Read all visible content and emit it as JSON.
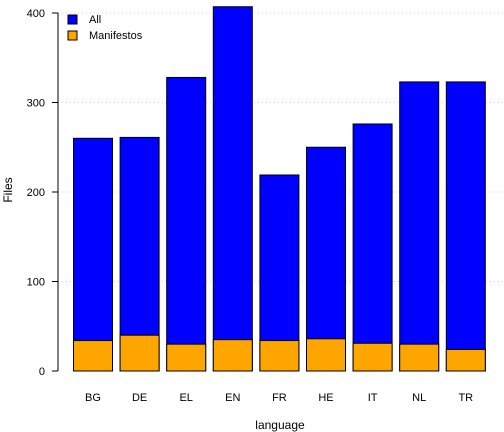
{
  "chart_data": {
    "type": "bar",
    "stacking": "overlapping",
    "xlabel": "language",
    "ylabel": "Files",
    "ylim": [
      0,
      400
    ],
    "yticks": [
      0,
      100,
      200,
      300,
      400
    ],
    "grid": {
      "horizontal": true,
      "style": "dotted"
    },
    "legend": {
      "position": "top-left"
    },
    "categories": [
      "BG",
      "DE",
      "EL",
      "EN",
      "FR",
      "HE",
      "IT",
      "NL",
      "TR"
    ],
    "series": [
      {
        "name": "All",
        "color": "#0000ff",
        "values": [
          260,
          261,
          328,
          407,
          219,
          250,
          276,
          323,
          323
        ]
      },
      {
        "name": "Manifestos",
        "color": "#ffa500",
        "values": [
          34,
          40,
          30,
          35,
          34,
          36,
          31,
          30,
          24
        ]
      }
    ]
  }
}
